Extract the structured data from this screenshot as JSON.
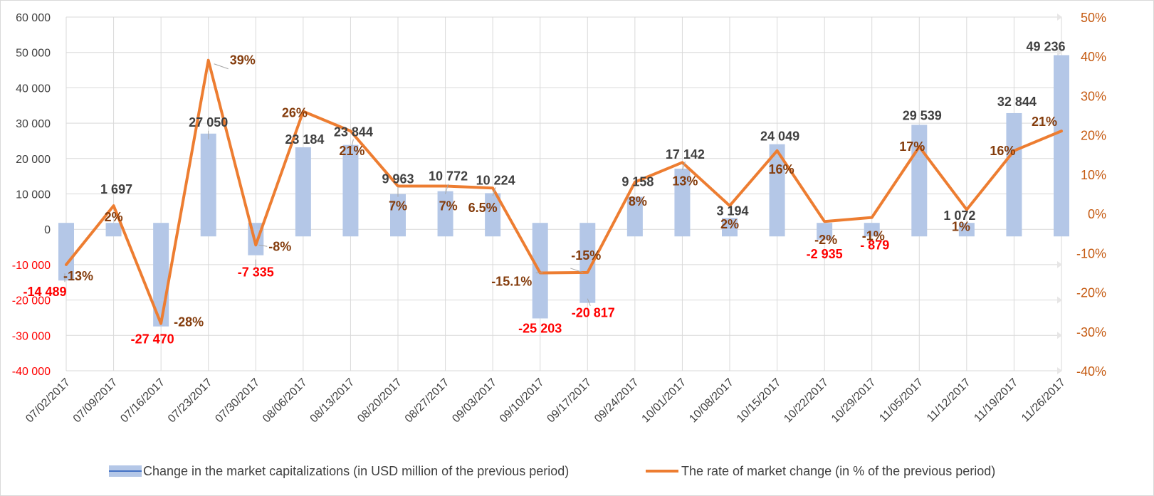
{
  "chart_data": {
    "type": "bar+line",
    "categories": [
      "07/02/2017",
      "07/09/2017",
      "07/16/2017",
      "07/23/2017",
      "07/30/2017",
      "08/06/2017",
      "08/13/2017",
      "08/20/2017",
      "08/27/2017",
      "09/03/2017",
      "09/10/2017",
      "09/17/2017",
      "09/24/2017",
      "10/01/2017",
      "10/08/2017",
      "10/15/2017",
      "10/22/2017",
      "10/29/2017",
      "11/05/2017",
      "11/12/2017",
      "11/19/2017",
      "11/26/2017"
    ],
    "series": [
      {
        "name": "Change in the market capitalizations  (in USD million of the previous period)",
        "type": "bar",
        "axis": "left",
        "values": [
          -14489,
          1697,
          -27470,
          27050,
          -7335,
          23184,
          23844,
          9963,
          10772,
          10224,
          -25203,
          -20817,
          9158,
          17142,
          3194,
          24049,
          -2935,
          -879,
          29539,
          1072,
          32844,
          49236
        ],
        "labels": [
          "-14 489",
          "1 697",
          "-27 470",
          "27 050",
          "-7 335",
          "23 184",
          "23 844",
          "9 963",
          "10 772",
          "10 224",
          "-25 203",
          "-20 817",
          "9 158",
          "17 142",
          "3 194",
          "24 049",
          "-2 935",
          "- 879",
          "29 539",
          "1 072",
          "32 844",
          "49 236"
        ]
      },
      {
        "name": "The rate of market change (in % of the previous period)",
        "type": "line",
        "axis": "right",
        "values": [
          -13,
          2,
          -28,
          39,
          -8,
          26,
          21,
          7,
          7,
          6.5,
          -15.1,
          -15,
          8,
          13,
          2,
          16,
          -2,
          -1,
          17,
          1,
          16,
          21
        ],
        "labels": [
          "-13%",
          "2%",
          "-28%",
          "39%",
          "-8%",
          "26%",
          "21%",
          "7%",
          "7%",
          "6.5%",
          "-15.1%",
          "-15%",
          "8%",
          "13%",
          "2%",
          "16%",
          "-2%",
          "-1%",
          "17%",
          "1%",
          "16%",
          "21%"
        ]
      }
    ],
    "yleft": {
      "ylim": [
        -40000,
        60000
      ],
      "ticks": [
        60000,
        50000,
        40000,
        30000,
        20000,
        10000,
        0,
        -10000,
        -20000,
        -30000,
        -40000
      ],
      "tick_labels": [
        "60 000",
        "50 000",
        "40 000",
        "30 000",
        "20 000",
        "10 000",
        "0",
        "-10 000",
        "-20 000",
        "-30 000",
        "-40 000"
      ]
    },
    "yright": {
      "ylim": [
        -40,
        50
      ],
      "ticks": [
        50,
        40,
        30,
        20,
        10,
        0,
        -10,
        -20,
        -30,
        -40
      ],
      "tick_labels": [
        "50%",
        "40%",
        "30%",
        "20%",
        "10%",
        "0%",
        "-10%",
        "-20%",
        "-30%",
        "-40%"
      ]
    },
    "grid": true,
    "legend_position": "bottom",
    "colors": {
      "bar": "#b4c7e7",
      "line": "#ed7d31",
      "positive_label": "#404040",
      "negative_label": "#ff0000",
      "pct_label": "#843c0c",
      "left_axis_pos": "#404040",
      "left_axis_neg": "#ff0000",
      "right_axis": "#c55a11",
      "grid": "#d9d9d9"
    }
  }
}
